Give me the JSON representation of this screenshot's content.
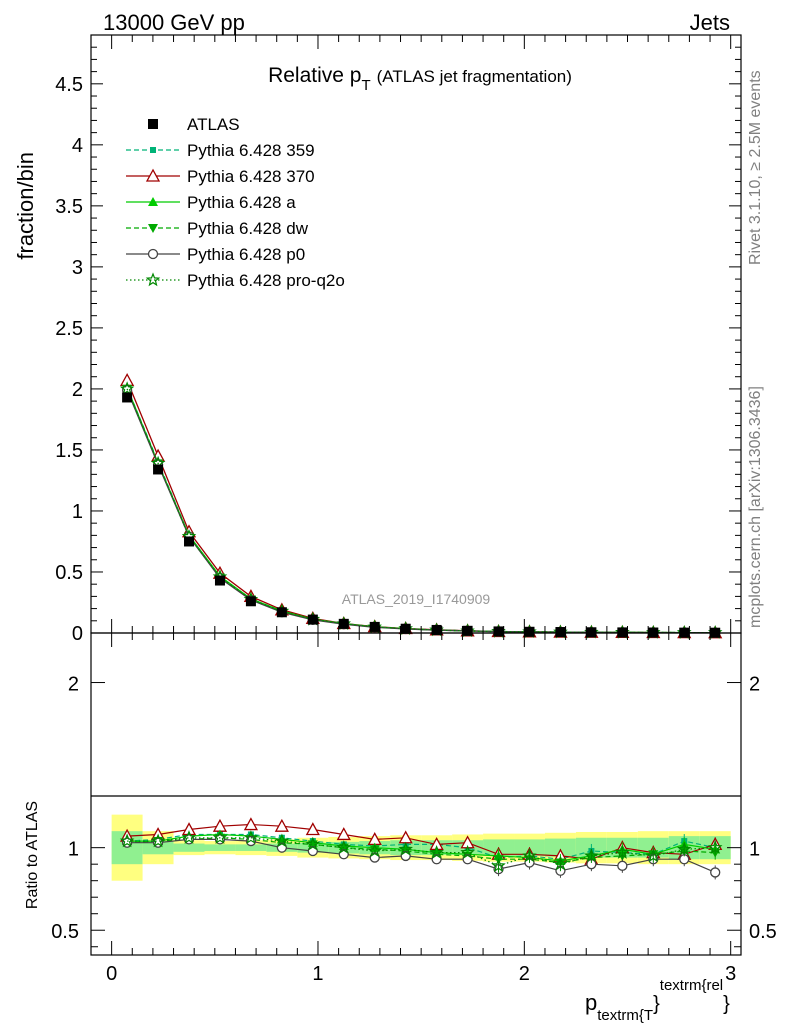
{
  "header": {
    "left": "13000 GeV pp",
    "right": "Jets"
  },
  "side": {
    "rivet": "Rivet 3.1.10, ≥ 2.5M events",
    "mcplots": "mcplots.cern.ch [arXiv:1306.3436]"
  },
  "chart_data": [
    {
      "type": "scatter",
      "title_main": "Relative p",
      "title_sub": "T",
      "title_rest": "(ATLAS jet fragmentation)",
      "ylabel": "fraction/bin",
      "analysis_label": "ATLAS_2019_I1740909",
      "xlim": [
        -0.1,
        3.05
      ],
      "ylim": [
        0,
        4.9
      ],
      "y_ticks": [
        "0",
        "0.5",
        "1",
        "1.5",
        "2",
        "2.5",
        "3",
        "3.5",
        "4",
        "4.5"
      ],
      "x": [
        0.075,
        0.225,
        0.375,
        0.525,
        0.675,
        0.825,
        0.975,
        1.125,
        1.275,
        1.425,
        1.575,
        1.725,
        1.875,
        2.025,
        2.175,
        2.325,
        2.475,
        2.625,
        2.775,
        2.925
      ],
      "series": [
        {
          "name": "ATLAS",
          "color": "#000000",
          "marker": "square",
          "line": "none",
          "values": [
            1.93,
            1.34,
            0.75,
            0.43,
            0.26,
            0.17,
            0.11,
            0.075,
            0.05,
            0.035,
            0.025,
            0.018,
            0.013,
            0.01,
            0.008,
            0.006,
            0.005,
            0.004,
            0.003,
            0.0025
          ]
        },
        {
          "name": "Pythia 6.428 359",
          "color": "#00b377",
          "marker": "square-small",
          "line": "dashed",
          "values": [
            2.01,
            1.4,
            0.8,
            0.46,
            0.28,
            0.18,
            0.115,
            0.077,
            0.051,
            0.036,
            0.025,
            0.018,
            0.012,
            0.0095,
            0.0074,
            0.0058,
            0.0048,
            0.0038,
            0.0031,
            0.0025
          ]
        },
        {
          "name": "Pythia 6.428 370",
          "color": "#a00000",
          "marker": "triangle-open",
          "line": "solid",
          "values": [
            2.07,
            1.45,
            0.83,
            0.49,
            0.3,
            0.19,
            0.12,
            0.078,
            0.052,
            0.037,
            0.026,
            0.018,
            0.012,
            0.0095,
            0.0075,
            0.006,
            0.005,
            0.0039,
            0.003,
            0.0025
          ]
        },
        {
          "name": "Pythia 6.428 a",
          "color": "#00cc00",
          "marker": "triangle",
          "line": "solid",
          "values": [
            2.01,
            1.39,
            0.8,
            0.465,
            0.28,
            0.18,
            0.114,
            0.076,
            0.05,
            0.035,
            0.024,
            0.017,
            0.012,
            0.0093,
            0.0072,
            0.0056,
            0.0049,
            0.0038,
            0.0031,
            0.0025
          ]
        },
        {
          "name": "Pythia 6.428 dw",
          "color": "#00aa00",
          "marker": "triangle-down",
          "line": "dashed",
          "values": [
            2.0,
            1.39,
            0.79,
            0.455,
            0.275,
            0.175,
            0.112,
            0.075,
            0.05,
            0.034,
            0.024,
            0.017,
            0.0115,
            0.009,
            0.0071,
            0.0056,
            0.0046,
            0.0037,
            0.003,
            0.0024
          ]
        },
        {
          "name": "Pythia 6.428 p0",
          "color": "#444444",
          "marker": "circle-open",
          "line": "solid",
          "values": [
            1.99,
            1.38,
            0.79,
            0.45,
            0.27,
            0.17,
            0.108,
            0.072,
            0.047,
            0.033,
            0.023,
            0.017,
            0.0113,
            0.0091,
            0.0069,
            0.0054,
            0.0045,
            0.0037,
            0.0028,
            0.0021
          ]
        },
        {
          "name": "Pythia 6.428 pro-q2o",
          "color": "#008800",
          "marker": "star",
          "line": "dotted",
          "values": [
            2.0,
            1.39,
            0.79,
            0.46,
            0.275,
            0.178,
            0.112,
            0.075,
            0.049,
            0.035,
            0.024,
            0.017,
            0.0118,
            0.0092,
            0.0072,
            0.0057,
            0.0047,
            0.0038,
            0.003,
            0.0025
          ]
        }
      ]
    },
    {
      "type": "scatter",
      "ylabel": "Ratio to ATLAS",
      "xlabel_main": "p",
      "xlabel_sub": "textrm{T",
      "xlabel_sup": "textrm{rel",
      "xlabel_brace": "}",
      "xlim": [
        -0.1,
        3.05
      ],
      "ylim": [
        0.35,
        2.3
      ],
      "x_ticks": [
        "0",
        "1",
        "2",
        "3"
      ],
      "y_ticks": [
        "0.5",
        "1",
        "2"
      ],
      "x": [
        0.075,
        0.225,
        0.375,
        0.525,
        0.675,
        0.825,
        0.975,
        1.125,
        1.275,
        1.425,
        1.575,
        1.725,
        1.875,
        2.025,
        2.175,
        2.325,
        2.475,
        2.625,
        2.775,
        2.925
      ],
      "band_inner": [
        [
          0.9,
          1.1
        ],
        [
          0.96,
          1.04
        ],
        [
          0.975,
          1.025
        ],
        [
          0.98,
          1.02
        ],
        [
          0.98,
          1.02
        ],
        [
          0.975,
          1.025
        ],
        [
          0.97,
          1.03
        ],
        [
          0.965,
          1.035
        ],
        [
          0.96,
          1.04
        ],
        [
          0.955,
          1.045
        ],
        [
          0.955,
          1.045
        ],
        [
          0.955,
          1.045
        ],
        [
          0.95,
          1.05
        ],
        [
          0.95,
          1.05
        ],
        [
          0.945,
          1.055
        ],
        [
          0.94,
          1.06
        ],
        [
          0.94,
          1.06
        ],
        [
          0.94,
          1.06
        ],
        [
          0.93,
          1.07
        ],
        [
          0.93,
          1.07
        ]
      ],
      "band_outer": [
        [
          0.8,
          1.2
        ],
        [
          0.9,
          1.1
        ],
        [
          0.955,
          1.045
        ],
        [
          0.96,
          1.04
        ],
        [
          0.955,
          1.045
        ],
        [
          0.95,
          1.05
        ],
        [
          0.94,
          1.06
        ],
        [
          0.935,
          1.065
        ],
        [
          0.93,
          1.07
        ],
        [
          0.925,
          1.075
        ],
        [
          0.925,
          1.075
        ],
        [
          0.92,
          1.08
        ],
        [
          0.915,
          1.085
        ],
        [
          0.915,
          1.085
        ],
        [
          0.91,
          1.09
        ],
        [
          0.905,
          1.095
        ],
        [
          0.905,
          1.095
        ],
        [
          0.9,
          1.1
        ],
        [
          0.9,
          1.1
        ],
        [
          0.9,
          1.1
        ]
      ],
      "series": [
        {
          "name": "Pythia 6.428 359",
          "color": "#00b377",
          "marker": "square-small",
          "line": "dashed",
          "values": [
            1.04,
            1.05,
            1.08,
            1.08,
            1.08,
            1.06,
            1.04,
            1.02,
            1.01,
            1.02,
            1.02,
            1.0,
            0.94,
            0.95,
            0.93,
            0.98,
            0.97,
            0.96,
            1.04,
            1.0
          ]
        },
        {
          "name": "Pythia 6.428 370",
          "color": "#a00000",
          "marker": "triangle-open",
          "line": "solid",
          "values": [
            1.07,
            1.08,
            1.11,
            1.13,
            1.14,
            1.13,
            1.11,
            1.08,
            1.05,
            1.06,
            1.02,
            1.03,
            0.96,
            0.96,
            0.95,
            0.93,
            1.0,
            0.97,
            0.96,
            1.02
          ]
        },
        {
          "name": "Pythia 6.428 a",
          "color": "#00cc00",
          "marker": "triangle",
          "line": "solid",
          "values": [
            1.04,
            1.04,
            1.07,
            1.08,
            1.07,
            1.05,
            1.03,
            1.01,
            1.0,
            0.99,
            0.97,
            0.96,
            0.95,
            0.94,
            0.92,
            0.95,
            0.99,
            0.96,
            1.02,
            0.99
          ]
        },
        {
          "name": "Pythia 6.428 dw",
          "color": "#00aa00",
          "marker": "triangle-down",
          "line": "dashed",
          "values": [
            1.03,
            1.04,
            1.05,
            1.06,
            1.05,
            1.03,
            1.02,
            1.0,
            0.99,
            0.98,
            0.96,
            0.95,
            0.93,
            0.93,
            0.91,
            0.94,
            0.95,
            0.96,
            0.98,
            0.97
          ]
        },
        {
          "name": "Pythia 6.428 p0",
          "color": "#444444",
          "marker": "circle-open",
          "line": "solid",
          "values": [
            1.03,
            1.03,
            1.05,
            1.05,
            1.04,
            1.0,
            0.98,
            0.96,
            0.94,
            0.95,
            0.93,
            0.93,
            0.87,
            0.91,
            0.86,
            0.9,
            0.89,
            0.93,
            0.93,
            0.85
          ]
        },
        {
          "name": "Pythia 6.428 pro-q2o",
          "color": "#008800",
          "marker": "star",
          "line": "dotted",
          "values": [
            1.04,
            1.04,
            1.06,
            1.06,
            1.06,
            1.04,
            1.02,
            1.0,
            0.98,
            0.99,
            0.97,
            0.97,
            0.89,
            0.95,
            0.9,
            0.95,
            0.97,
            0.95,
            0.99,
            1.0
          ]
        }
      ]
    }
  ]
}
